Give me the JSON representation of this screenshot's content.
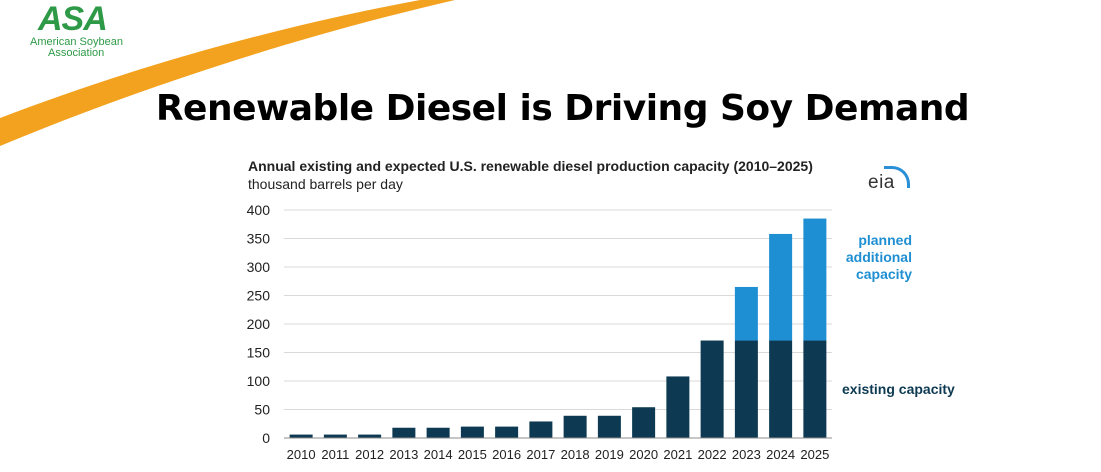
{
  "slide": {
    "title": "Renewable Diesel is Driving Soy Demand",
    "logo": {
      "mark": "ASA",
      "line1": "American Soybean",
      "line2": "Association"
    },
    "source_logo": "eia",
    "colors": {
      "swoosh": "#f3a21f",
      "logo_green": "#2e9a47"
    }
  },
  "chart_data": {
    "type": "bar",
    "stacked": true,
    "title": "Annual existing and expected U.S. renewable diesel production capacity (2010–2025)",
    "subtitle": "thousand barrels per day",
    "categories": [
      "2010",
      "2011",
      "2012",
      "2013",
      "2014",
      "2015",
      "2016",
      "2017",
      "2018",
      "2019",
      "2020",
      "2021",
      "2022",
      "2023",
      "2024",
      "2025"
    ],
    "series": [
      {
        "name": "existing capacity",
        "color": "#0d3a52",
        "values": [
          6,
          6,
          6,
          18,
          18,
          20,
          20,
          29,
          39,
          39,
          54,
          108,
          171,
          171,
          171,
          171
        ]
      },
      {
        "name": "planned additional capacity",
        "color": "#1e8fd2",
        "values": [
          0,
          0,
          0,
          0,
          0,
          0,
          0,
          0,
          0,
          0,
          0,
          0,
          0,
          94,
          187,
          214
        ]
      }
    ],
    "ylim": [
      0,
      400
    ],
    "yticks": [
      0,
      50,
      100,
      150,
      200,
      250,
      300,
      350,
      400
    ],
    "grid": true,
    "legend_position": "right"
  }
}
